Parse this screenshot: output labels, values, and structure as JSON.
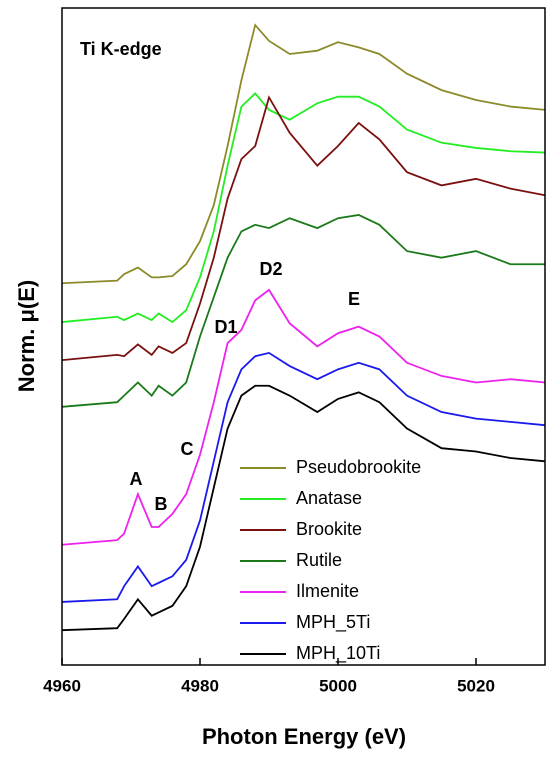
{
  "chart_data": {
    "type": "line",
    "title": "Ti K-edge",
    "x_label": "Photon Energy (eV)",
    "y_label": "Norm. μ(E)",
    "xlim": [
      4960,
      5030
    ],
    "xticks": [
      4960,
      4980,
      5000,
      5020
    ],
    "ylim": [
      0,
      10
    ],
    "legend": "lower right",
    "annotations": [
      "A",
      "B",
      "C",
      "D1",
      "D2",
      "E"
    ],
    "x": [
      4960,
      4968,
      4969,
      4971,
      4973,
      4974,
      4976,
      4978,
      4980,
      4982,
      4984,
      4986,
      4988,
      4990,
      4993,
      4997,
      5000,
      5003,
      5006,
      5010,
      5015,
      5020,
      5025,
      5030
    ],
    "series": [
      {
        "name": "Pseudobrookite",
        "color": "#8b8b2a",
        "values": [
          5.81,
          5.85,
          5.95,
          6.05,
          5.9,
          5.9,
          5.92,
          6.1,
          6.45,
          7.0,
          7.9,
          8.9,
          9.74,
          9.5,
          9.3,
          9.35,
          9.48,
          9.4,
          9.3,
          9.0,
          8.75,
          8.6,
          8.5,
          8.45
        ]
      },
      {
        "name": "Anatase",
        "color": "#22ee22",
        "values": [
          5.22,
          5.3,
          5.25,
          5.35,
          5.25,
          5.35,
          5.22,
          5.4,
          5.9,
          6.6,
          7.6,
          8.5,
          8.7,
          8.45,
          8.3,
          8.55,
          8.65,
          8.65,
          8.5,
          8.15,
          7.95,
          7.87,
          7.82,
          7.8
        ]
      },
      {
        "name": "Brookite",
        "color": "#7a1010",
        "values": [
          4.64,
          4.72,
          4.7,
          4.88,
          4.72,
          4.85,
          4.75,
          4.9,
          5.5,
          6.2,
          7.1,
          7.7,
          7.9,
          8.64,
          8.1,
          7.6,
          7.9,
          8.25,
          8.0,
          7.5,
          7.3,
          7.4,
          7.25,
          7.15
        ]
      },
      {
        "name": "Rutile",
        "color": "#1a7a1a",
        "values": [
          3.93,
          4.0,
          4.1,
          4.3,
          4.1,
          4.25,
          4.1,
          4.3,
          5.0,
          5.6,
          6.2,
          6.6,
          6.7,
          6.65,
          6.8,
          6.65,
          6.8,
          6.85,
          6.7,
          6.3,
          6.2,
          6.3,
          6.1,
          6.1
        ]
      },
      {
        "name": "Ilmenite",
        "color": "#ee22ee",
        "values": [
          1.83,
          1.9,
          2.0,
          2.6,
          2.1,
          2.1,
          2.3,
          2.6,
          3.2,
          4.0,
          4.9,
          5.1,
          5.55,
          5.71,
          5.2,
          4.85,
          5.05,
          5.15,
          5.0,
          4.6,
          4.4,
          4.3,
          4.35,
          4.3
        ]
      },
      {
        "name": "MPH_5Ti",
        "color": "#1a1aee",
        "values": [
          0.96,
          1.0,
          1.2,
          1.5,
          1.2,
          1.25,
          1.35,
          1.6,
          2.2,
          3.1,
          4.0,
          4.5,
          4.7,
          4.75,
          4.55,
          4.35,
          4.5,
          4.6,
          4.5,
          4.1,
          3.85,
          3.75,
          3.7,
          3.65
        ]
      },
      {
        "name": "MPH_10Ti",
        "color": "#000000",
        "values": [
          0.53,
          0.56,
          0.7,
          1.0,
          0.75,
          0.8,
          0.9,
          1.2,
          1.8,
          2.7,
          3.6,
          4.1,
          4.25,
          4.25,
          4.1,
          3.85,
          4.05,
          4.15,
          4.0,
          3.6,
          3.3,
          3.25,
          3.15,
          3.1
        ]
      }
    ]
  }
}
